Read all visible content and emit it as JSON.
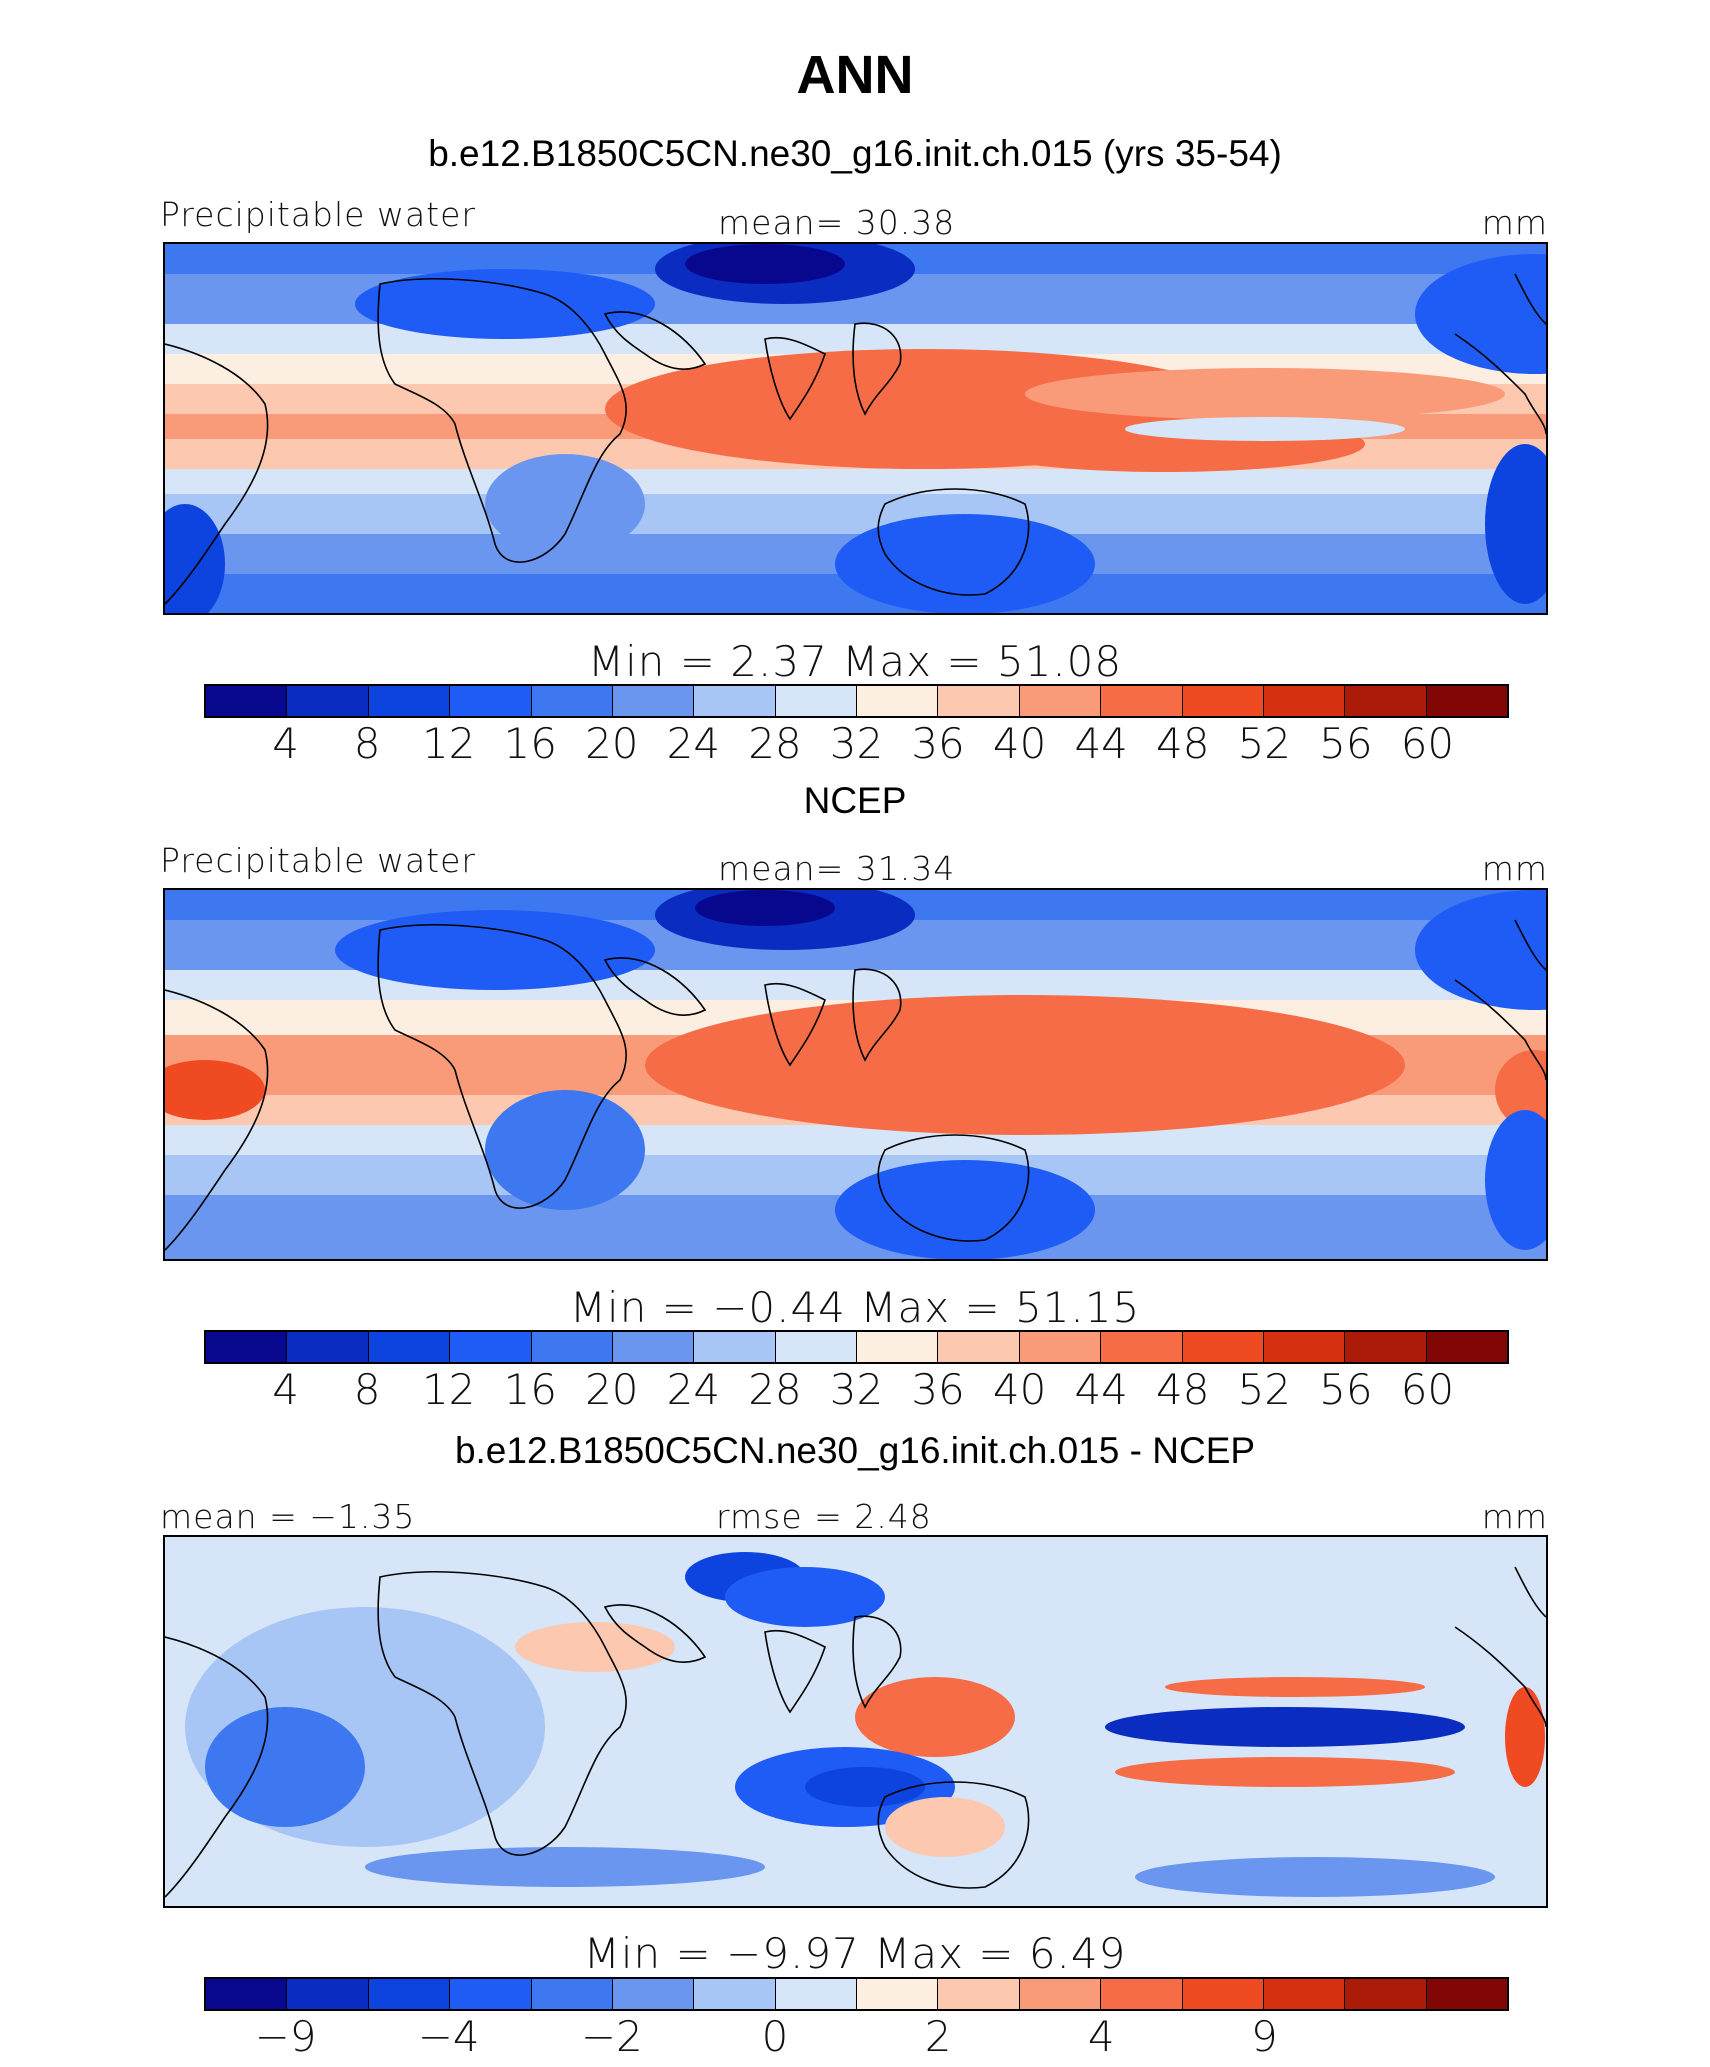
{
  "title": "ANN",
  "colors": [
    "#08088f",
    "#0a2cc0",
    "#0d44e0",
    "#1f5cf5",
    "#3d78f0",
    "#6a96f0",
    "#a8c6f5",
    "#d6e6f8",
    "#fdeee2",
    "#fcc8b0",
    "#f99b78",
    "#f56c46",
    "#ef4a22",
    "#d73010",
    "#ac1a0a",
    "#820606"
  ],
  "panels": [
    {
      "title": "b.e12.B1850C5CN.ne30_g16.init.ch.015 (yrs 35-54)",
      "left_label": "Precipitable water",
      "center_label": "mean=   30.38",
      "right_label": "mm",
      "minmax": "Min  =     2.37  Max  =    51.08",
      "ticks": [
        "4",
        "8",
        "12",
        "16",
        "20",
        "24",
        "28",
        "32",
        "36",
        "40",
        "44",
        "48",
        "52",
        "56",
        "60"
      ]
    },
    {
      "title": "NCEP",
      "left_label": "Precipitable water",
      "center_label": "mean=   31.34",
      "right_label": "mm",
      "minmax": "Min  =   −0.44  Max  =    51.15",
      "ticks": [
        "4",
        "8",
        "12",
        "16",
        "20",
        "24",
        "28",
        "32",
        "36",
        "40",
        "44",
        "48",
        "52",
        "56",
        "60"
      ]
    },
    {
      "title": "b.e12.B1850C5CN.ne30_g16.init.ch.015 - NCEP",
      "left_label": "mean  =  −1.35",
      "center_label": "rmse  =     2.48",
      "right_label": "mm",
      "minmax": "Min  =   −9.97  Max  =     6.49",
      "ticks": [
        "−9",
        "−4",
        "−2",
        "0",
        "2",
        "4",
        "9"
      ],
      "tick_boundaries": [
        1,
        3,
        5,
        7,
        9,
        11,
        13
      ]
    }
  ]
}
